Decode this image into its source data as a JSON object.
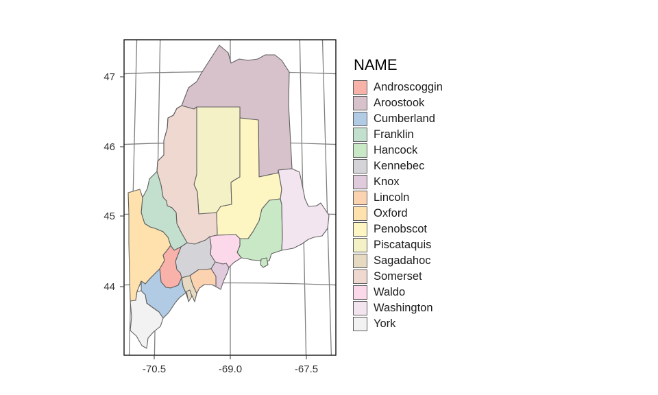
{
  "legend": {
    "title": "NAME",
    "items": [
      {
        "label": "Androscoggin",
        "color": "#F8B2AA"
      },
      {
        "label": "Aroostook",
        "color": "#D7C1CA"
      },
      {
        "label": "Cumberland",
        "color": "#B0CBE3"
      },
      {
        "label": "Franklin",
        "color": "#C3DFCD"
      },
      {
        "label": "Hancock",
        "color": "#C9E8C6"
      },
      {
        "label": "Kennebec",
        "color": "#D4D3D8"
      },
      {
        "label": "Knox",
        "color": "#DFCBDC"
      },
      {
        "label": "Lincoln",
        "color": "#FBD3B0"
      },
      {
        "label": "Oxford",
        "color": "#FEE1AC"
      },
      {
        "label": "Penobscot",
        "color": "#FEF6C2"
      },
      {
        "label": "Piscataquis",
        "color": "#F5F1C7"
      },
      {
        "label": "Sagadahoc",
        "color": "#E6DAC3"
      },
      {
        "label": "Somerset",
        "color": "#EFD8D0"
      },
      {
        "label": "Waldo",
        "color": "#FCD9EA"
      },
      {
        "label": "Washington",
        "color": "#F3E5EF"
      },
      {
        "label": "York",
        "color": "#F2F2F2"
      }
    ]
  },
  "axes": {
    "x_ticks": [
      "-70.5",
      "-69.0",
      "-67.5"
    ],
    "y_ticks": [
      "47",
      "46",
      "45",
      "44"
    ]
  },
  "style": {
    "graticule_color": "#7F7F7F",
    "border_color": "#606060",
    "frame_color": "#000000"
  }
}
